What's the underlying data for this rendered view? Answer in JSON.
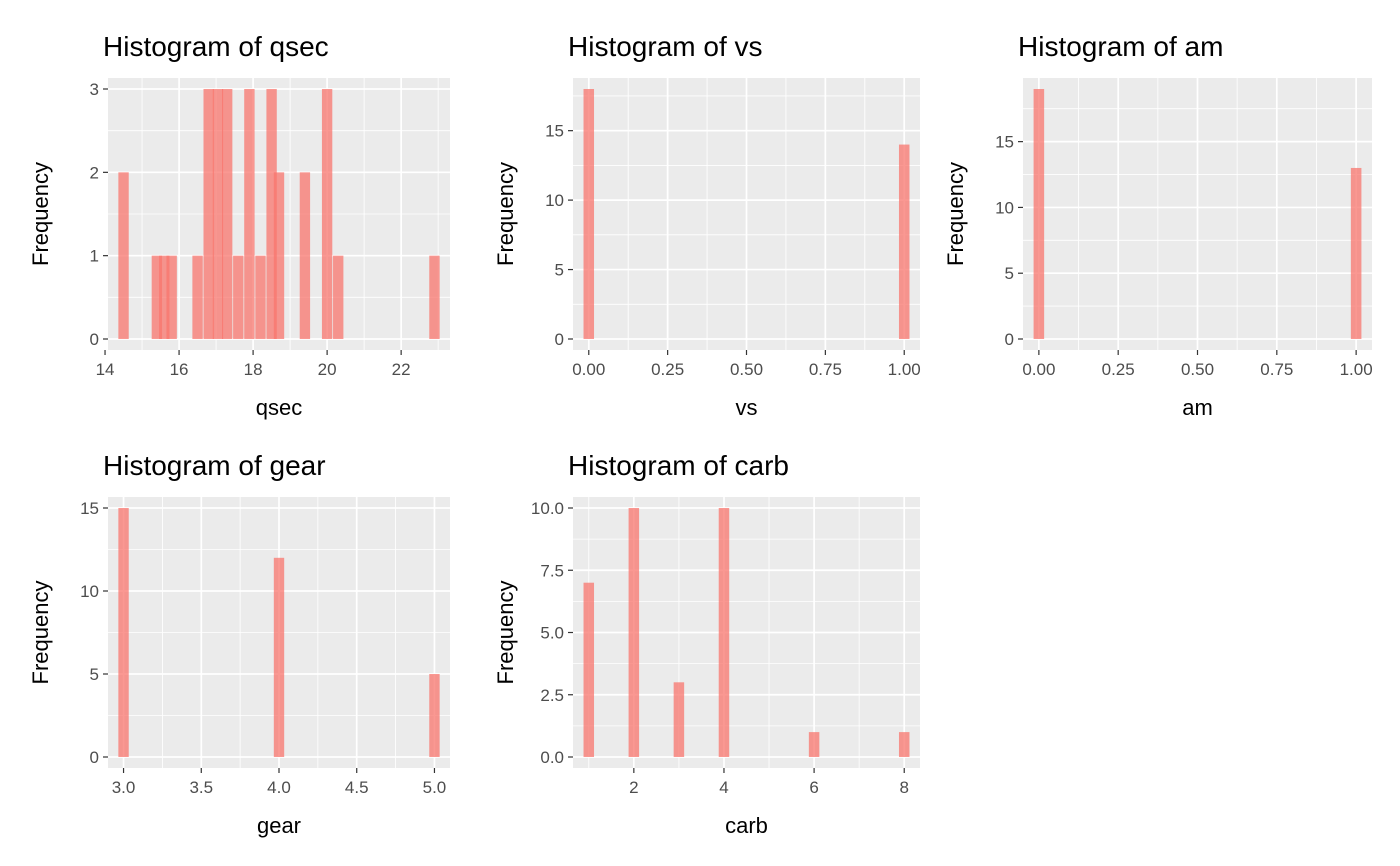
{
  "colors": {
    "bar": "#F8766D",
    "panel": "#EBEBEB",
    "grid": "#FFFFFF"
  },
  "chart_data": [
    {
      "type": "bar",
      "title": "Histogram of qsec",
      "xlabel": "qsec",
      "ylabel": "Frequency",
      "xlim": [
        14.08,
        23.32
      ],
      "ylim": [
        0,
        3
      ],
      "xticks": [
        14,
        16,
        18,
        20,
        22
      ],
      "yticks": [
        0,
        1,
        2,
        3
      ],
      "bar_width": 0.28,
      "bars": [
        {
          "x": 14.5,
          "y": 2
        },
        {
          "x": 15.4,
          "y": 1
        },
        {
          "x": 15.6,
          "y": 1
        },
        {
          "x": 15.8,
          "y": 1
        },
        {
          "x": 16.5,
          "y": 1
        },
        {
          "x": 16.8,
          "y": 3
        },
        {
          "x": 17.05,
          "y": 3
        },
        {
          "x": 17.3,
          "y": 3
        },
        {
          "x": 17.6,
          "y": 1
        },
        {
          "x": 17.9,
          "y": 3
        },
        {
          "x": 18.2,
          "y": 1
        },
        {
          "x": 18.5,
          "y": 3
        },
        {
          "x": 18.7,
          "y": 2
        },
        {
          "x": 19.4,
          "y": 2
        },
        {
          "x": 20.0,
          "y": 3
        },
        {
          "x": 20.3,
          "y": 1
        },
        {
          "x": 22.9,
          "y": 1
        }
      ]
    },
    {
      "type": "bar",
      "title": "Histogram of vs",
      "xlabel": "vs",
      "ylabel": "Frequency",
      "xlim": [
        -0.05,
        1.05
      ],
      "ylim": [
        0,
        18
      ],
      "xticks": [
        0.0,
        0.25,
        0.5,
        0.75,
        1.0
      ],
      "xtick_labels": [
        "0.00",
        "0.25",
        "0.50",
        "0.75",
        "1.00"
      ],
      "yticks": [
        0,
        5,
        10,
        15
      ],
      "bar_width": 0.0333,
      "bars": [
        {
          "x": 0,
          "y": 18
        },
        {
          "x": 1,
          "y": 14
        }
      ]
    },
    {
      "type": "bar",
      "title": "Histogram of am",
      "xlabel": "am",
      "ylabel": "Frequency",
      "xlim": [
        -0.05,
        1.05
      ],
      "ylim": [
        0,
        19
      ],
      "xticks": [
        0.0,
        0.25,
        0.5,
        0.75,
        1.0
      ],
      "xtick_labels": [
        "0.00",
        "0.25",
        "0.50",
        "0.75",
        "1.00"
      ],
      "yticks": [
        0,
        5,
        10,
        15
      ],
      "bar_width": 0.0333,
      "bars": [
        {
          "x": 0,
          "y": 19
        },
        {
          "x": 1,
          "y": 13
        }
      ]
    },
    {
      "type": "bar",
      "title": "Histogram of gear",
      "xlabel": "gear",
      "ylabel": "Frequency",
      "xlim": [
        2.9,
        5.1
      ],
      "ylim": [
        0,
        15
      ],
      "xticks": [
        3.0,
        3.5,
        4.0,
        4.5,
        5.0
      ],
      "xtick_labels": [
        "3.0",
        "3.5",
        "4.0",
        "4.5",
        "5.0"
      ],
      "yticks": [
        0,
        5,
        10,
        15
      ],
      "bar_width": 0.0667,
      "bars": [
        {
          "x": 3,
          "y": 15
        },
        {
          "x": 4,
          "y": 12
        },
        {
          "x": 5,
          "y": 5
        }
      ]
    },
    {
      "type": "bar",
      "title": "Histogram of carb",
      "xlabel": "carb",
      "ylabel": "Frequency",
      "xlim": [
        0.65,
        8.35
      ],
      "ylim": [
        0,
        10
      ],
      "xticks": [
        2,
        4,
        6,
        8
      ],
      "xtick_labels": [
        "2",
        "4",
        "6",
        "8"
      ],
      "yticks": [
        0,
        2.5,
        5,
        7.5,
        10
      ],
      "ytick_labels": [
        "0.0",
        "2.5",
        "5.0",
        "7.5",
        "10.0"
      ],
      "bar_width": 0.233,
      "bars": [
        {
          "x": 1,
          "y": 7
        },
        {
          "x": 2,
          "y": 10
        },
        {
          "x": 3,
          "y": 3
        },
        {
          "x": 4,
          "y": 10
        },
        {
          "x": 6,
          "y": 1
        },
        {
          "x": 8,
          "y": 1
        }
      ]
    }
  ]
}
